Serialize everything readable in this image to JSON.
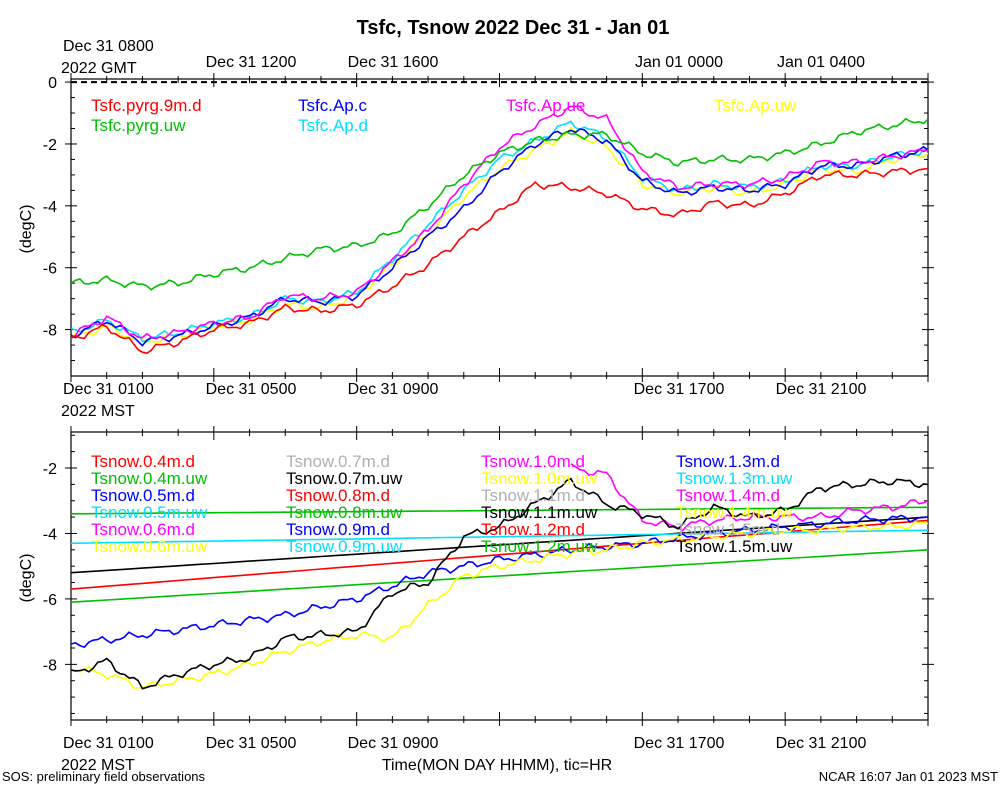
{
  "title": "Tsfc, Tsnow 2022 Dec 31 - Jan 01",
  "xlabel": "Time(MON DAY HHMM), tic=HR",
  "footer_left": "SOS: preliminary field observations",
  "footer_right": "NCAR 16:07 Jan 01 2023 MST",
  "top_axis": {
    "first_label": "Dec 31 0800",
    "first_sub": "2022 GMT",
    "labels": [
      "Dec 31 1200",
      "Dec 31 1600",
      "Jan 01 0000",
      "Jan 01 0400"
    ]
  },
  "bottom_axis": {
    "first_label": "Dec 31 0100",
    "first_sub": "2022 MST",
    "labels": [
      "Dec 31 0500",
      "Dec 31 0900",
      "Dec 31 1700",
      "Dec 31 2100"
    ]
  },
  "colors": {
    "red": "#ff0000",
    "green": "#00c000",
    "blue": "#0000ff",
    "cyan": "#00e0ff",
    "magenta": "#ff00ff",
    "yellow": "#ffff00",
    "gray": "#b0b0b0",
    "black": "#000000"
  },
  "chart_data": [
    {
      "type": "line",
      "ylabel": "(degC)",
      "ylim": [
        -9.5,
        0.1
      ],
      "xlim_hours": [
        0,
        24
      ],
      "yticks": [
        0,
        -2,
        -4,
        -6,
        -8
      ],
      "reference_line": 0,
      "legend": [
        {
          "name": "Tsfc.pyrg.9m.d",
          "color": "red"
        },
        {
          "name": "Tsfc.pyrg.uw",
          "color": "green"
        },
        {
          "name": "Tsfc.Ap.c",
          "color": "blue"
        },
        {
          "name": "Tsfc.Ap.d",
          "color": "cyan"
        },
        {
          "name": "Tsfc.Ap.ue",
          "color": "magenta"
        },
        {
          "name": "Tsfc.Ap.uw",
          "color": "yellow"
        }
      ],
      "series": [
        {
          "name": "Tsfc.Ap.uw",
          "color": "yellow",
          "x": [
            0,
            1,
            2,
            3,
            4,
            5,
            6,
            7,
            8,
            9,
            10,
            11,
            12,
            13,
            14,
            15,
            16,
            17,
            18,
            19,
            20,
            21,
            22,
            23,
            24
          ],
          "values": [
            -8.3,
            -7.9,
            -8.4,
            -8.2,
            -7.9,
            -7.7,
            -7.2,
            -7.3,
            -6.9,
            -5.9,
            -4.9,
            -3.7,
            -2.8,
            -2.2,
            -1.6,
            -2.1,
            -3.3,
            -3.6,
            -3.4,
            -3.6,
            -3.3,
            -2.8,
            -2.9,
            -2.5,
            -2.3
          ]
        },
        {
          "name": "Tsfc.Ap.d",
          "color": "cyan",
          "x": [
            0,
            1,
            2,
            3,
            4,
            5,
            6,
            7,
            8,
            9,
            10,
            11,
            12,
            13,
            14,
            15,
            16,
            17,
            18,
            19,
            20,
            21,
            22,
            23,
            24
          ],
          "values": [
            -8.1,
            -7.7,
            -8.3,
            -8.1,
            -7.8,
            -7.6,
            -7.0,
            -7.1,
            -6.8,
            -5.7,
            -4.6,
            -3.5,
            -2.5,
            -1.9,
            -1.3,
            -1.8,
            -3.1,
            -3.5,
            -3.3,
            -3.4,
            -3.2,
            -2.7,
            -2.7,
            -2.4,
            -2.2
          ]
        },
        {
          "name": "Tsfc.Ap.c",
          "color": "blue",
          "x": [
            0,
            1,
            2,
            3,
            4,
            5,
            6,
            7,
            8,
            9,
            10,
            11,
            12,
            13,
            14,
            15,
            16,
            17,
            18,
            19,
            20,
            21,
            22,
            23,
            24
          ],
          "values": [
            -8.2,
            -7.7,
            -8.4,
            -8.2,
            -7.9,
            -7.6,
            -7.0,
            -7.1,
            -6.9,
            -6.0,
            -5.0,
            -4.1,
            -2.9,
            -2.0,
            -1.5,
            -1.9,
            -3.2,
            -3.6,
            -3.4,
            -3.5,
            -3.3,
            -2.7,
            -2.7,
            -2.4,
            -2.2
          ]
        },
        {
          "name": "Tsfc.Ap.ue",
          "color": "magenta",
          "x": [
            0,
            1,
            2,
            3,
            4,
            5,
            6,
            7,
            8,
            9,
            10,
            11,
            12,
            13,
            14,
            15,
            16,
            17,
            18,
            19,
            20,
            21,
            22,
            23,
            24
          ],
          "values": [
            -8.2,
            -7.6,
            -8.3,
            -8.1,
            -7.8,
            -7.6,
            -6.9,
            -7.0,
            -6.8,
            -5.8,
            -4.8,
            -3.3,
            -2.1,
            -1.4,
            -0.8,
            -1.2,
            -2.9,
            -3.4,
            -3.3,
            -3.3,
            -3.1,
            -2.6,
            -2.6,
            -2.4,
            -2.2
          ]
        },
        {
          "name": "Tsfc.pyrg.uw",
          "color": "green",
          "x": [
            0,
            1,
            2,
            3,
            4,
            5,
            6,
            7,
            8,
            9,
            10,
            11,
            12,
            13,
            14,
            15,
            16,
            17,
            18,
            19,
            20,
            21,
            22,
            23,
            24
          ],
          "values": [
            -6.5,
            -6.4,
            -6.6,
            -6.5,
            -6.2,
            -6.0,
            -5.7,
            -5.4,
            -5.3,
            -4.9,
            -4.0,
            -3.0,
            -2.3,
            -1.9,
            -1.7,
            -1.7,
            -2.3,
            -2.6,
            -2.5,
            -2.5,
            -2.3,
            -2.0,
            -1.6,
            -1.4,
            -1.2
          ]
        },
        {
          "name": "Tsfc.pyrg.9m.d",
          "color": "red",
          "x": [
            0,
            1,
            2,
            3,
            4,
            5,
            6,
            7,
            8,
            9,
            10,
            11,
            12,
            13,
            14,
            15,
            16,
            17,
            18,
            19,
            20,
            21,
            22,
            23,
            24
          ],
          "values": [
            -8.3,
            -7.9,
            -8.7,
            -8.4,
            -8.0,
            -7.8,
            -7.3,
            -7.4,
            -7.2,
            -6.6,
            -5.9,
            -5.0,
            -4.2,
            -3.3,
            -3.4,
            -3.6,
            -4.1,
            -4.3,
            -3.9,
            -4.0,
            -3.6,
            -3.0,
            -3.0,
            -2.9,
            -2.8
          ]
        }
      ]
    },
    {
      "type": "line",
      "ylabel": "(degC)",
      "ylim": [
        -9.7,
        -0.9
      ],
      "xlim_hours": [
        0,
        24
      ],
      "yticks": [
        -2,
        -4,
        -6,
        -8
      ],
      "legend": [
        {
          "name": "Tsnow.0.4m.d",
          "color": "red"
        },
        {
          "name": "Tsnow.0.4m.uw",
          "color": "green"
        },
        {
          "name": "Tsnow.0.5m.d",
          "color": "blue"
        },
        {
          "name": "Tsnow.0.5m.uw",
          "color": "cyan"
        },
        {
          "name": "Tsnow.0.6m.d",
          "color": "magenta"
        },
        {
          "name": "Tsnow.0.6m.uw",
          "color": "yellow"
        },
        {
          "name": "Tsnow.0.7m.d",
          "color": "gray"
        },
        {
          "name": "Tsnow.0.7m.uw",
          "color": "black"
        },
        {
          "name": "Tsnow.0.8m.d",
          "color": "red"
        },
        {
          "name": "Tsnow.0.8m.uw",
          "color": "green"
        },
        {
          "name": "Tsnow.0.9m.d",
          "color": "blue"
        },
        {
          "name": "Tsnow.0.9m.uw",
          "color": "cyan"
        },
        {
          "name": "Tsnow.1.0m.d",
          "color": "magenta"
        },
        {
          "name": "Tsnow.1.0m.uw",
          "color": "yellow"
        },
        {
          "name": "Tsnow.1.1m.d",
          "color": "gray"
        },
        {
          "name": "Tsnow.1.1m.uw",
          "color": "black"
        },
        {
          "name": "Tsnow.1.2m.d",
          "color": "red"
        },
        {
          "name": "Tsnow.1.2m.uw",
          "color": "green"
        },
        {
          "name": "Tsnow.1.3m.d",
          "color": "blue"
        },
        {
          "name": "Tsnow.1.3m.uw",
          "color": "cyan"
        },
        {
          "name": "Tsnow.1.4m.d",
          "color": "magenta"
        },
        {
          "name": "Tsnow.1.4m.uw",
          "color": "yellow"
        },
        {
          "name": "Tsnow.1.5m.d",
          "color": "gray"
        },
        {
          "name": "Tsnow.1.5m.uw",
          "color": "black"
        }
      ],
      "series": [
        {
          "name": "Tsnow.0.4m.uw",
          "color": "green",
          "x": [
            0,
            24
          ],
          "values": [
            -6.1,
            -4.5
          ]
        },
        {
          "name": "Tsnow.0.4m.d",
          "color": "red",
          "x": [
            0,
            24
          ],
          "values": [
            -5.7,
            -3.6
          ]
        },
        {
          "name": "Tsnow.0.7m.uw",
          "color": "black",
          "x": [
            0,
            24
          ],
          "values": [
            -5.2,
            -3.5
          ]
        },
        {
          "name": "Tsnow.0.5m.uw",
          "color": "cyan",
          "x": [
            0,
            24
          ],
          "values": [
            -4.3,
            -3.9
          ]
        },
        {
          "name": "Tsnow.0.8m.uw",
          "color": "green",
          "x": [
            0,
            24
          ],
          "values": [
            -3.4,
            -3.2
          ]
        },
        {
          "name": "Tsnow.0.5m.d",
          "color": "blue",
          "x": [
            0,
            2,
            4,
            6,
            8,
            10,
            12,
            14,
            16,
            18,
            20,
            22,
            24
          ],
          "values": [
            -7.4,
            -7.1,
            -6.8,
            -6.5,
            -6.0,
            -5.2,
            -4.8,
            -4.5,
            -4.3,
            -4.0,
            -3.8,
            -3.6,
            -3.5
          ]
        },
        {
          "name": "Tsnow.0.6m.uw",
          "color": "yellow",
          "x": [
            0,
            1,
            2,
            3,
            4,
            5,
            6,
            7,
            8,
            9,
            10,
            11,
            12,
            13,
            14,
            15,
            16,
            17,
            18,
            19,
            20,
            21,
            22,
            23,
            24
          ],
          "values": [
            -8.1,
            -8.3,
            -8.7,
            -8.5,
            -8.3,
            -8.0,
            -7.6,
            -7.3,
            -7.1,
            -7.2,
            -6.2,
            -5.3,
            -5.0,
            -4.8,
            -4.6,
            -4.5,
            -4.3,
            -4.2,
            -4.1,
            -4.0,
            -3.9,
            -3.9,
            -3.8,
            -3.8,
            -3.7
          ]
        },
        {
          "name": "Tsnow.1.0m.d",
          "color": "magenta",
          "x": [
            14,
            15,
            16,
            17,
            18,
            19,
            20,
            21,
            22,
            23,
            24
          ],
          "values": [
            -2.0,
            -2.2,
            -3.6,
            -3.8,
            -3.6,
            -3.5,
            -3.5,
            -3.5,
            -3.3,
            -3.2,
            -3.0
          ]
        },
        {
          "name": "Tsnow.1.5m.uw",
          "color": "black",
          "x": [
            0,
            1,
            2,
            3,
            4,
            5,
            6,
            7,
            8,
            9,
            10,
            11,
            12,
            13,
            14,
            15,
            16,
            17,
            18,
            19,
            20,
            21,
            22,
            23,
            24
          ],
          "values": [
            -8.3,
            -7.9,
            -8.7,
            -8.3,
            -8.0,
            -7.8,
            -7.2,
            -7.1,
            -7.0,
            -5.8,
            -5.5,
            -4.1,
            -3.8,
            -3.1,
            -2.4,
            -3.1,
            -3.4,
            -3.8,
            -3.2,
            -3.5,
            -3.3,
            -2.6,
            -2.5,
            -2.4,
            -2.5
          ]
        }
      ]
    }
  ]
}
